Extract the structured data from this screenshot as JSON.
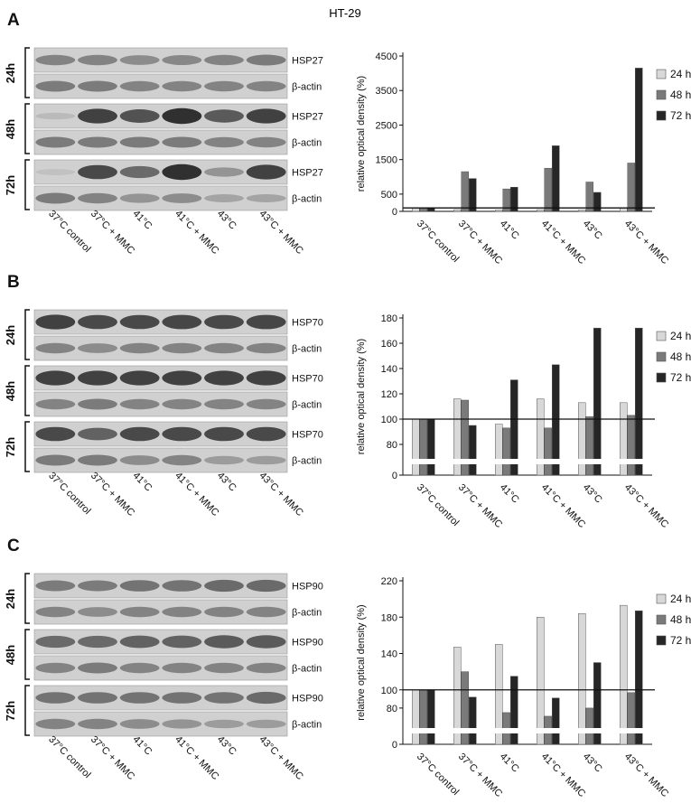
{
  "figure": {
    "title": "HT-29"
  },
  "conditions": [
    "37°C control",
    "37°C + MMC",
    "41°C",
    "41°C + MMC",
    "43°C",
    "43°C + MMC"
  ],
  "panels": [
    {
      "letter": "A",
      "blot_rows": [
        {
          "time": "24h",
          "bands": [
            {
              "label": "HSP27",
              "intensity": [
                0.45,
                0.45,
                0.4,
                0.42,
                0.45,
                0.5
              ]
            },
            {
              "label": "β-actin",
              "intensity": [
                0.5,
                0.5,
                0.45,
                0.45,
                0.45,
                0.45
              ]
            }
          ]
        },
        {
          "time": "48h",
          "bands": [
            {
              "label": "HSP27",
              "intensity": [
                0.12,
                0.85,
                0.75,
                0.95,
                0.7,
                0.85
              ]
            },
            {
              "label": "β-actin",
              "intensity": [
                0.5,
                0.5,
                0.5,
                0.5,
                0.45,
                0.45
              ]
            }
          ]
        },
        {
          "time": "72h",
          "bands": [
            {
              "label": "HSP27",
              "intensity": [
                0.08,
                0.8,
                0.6,
                0.95,
                0.35,
                0.85
              ]
            },
            {
              "label": "β-actin",
              "intensity": [
                0.5,
                0.45,
                0.35,
                0.4,
                0.25,
                0.25
              ]
            }
          ]
        }
      ]
    },
    {
      "letter": "B",
      "blot_rows": [
        {
          "time": "24h",
          "bands": [
            {
              "label": "HSP70",
              "intensity": [
                0.85,
                0.8,
                0.8,
                0.82,
                0.8,
                0.82
              ]
            },
            {
              "label": "β-actin",
              "intensity": [
                0.45,
                0.4,
                0.45,
                0.45,
                0.45,
                0.45
              ]
            }
          ]
        },
        {
          "time": "48h",
          "bands": [
            {
              "label": "HSP70",
              "intensity": [
                0.85,
                0.85,
                0.85,
                0.85,
                0.85,
                0.85
              ]
            },
            {
              "label": "β-actin",
              "intensity": [
                0.45,
                0.5,
                0.45,
                0.45,
                0.45,
                0.45
              ]
            }
          ]
        },
        {
          "time": "72h",
          "bands": [
            {
              "label": "HSP70",
              "intensity": [
                0.8,
                0.65,
                0.8,
                0.8,
                0.8,
                0.8
              ]
            },
            {
              "label": "β-actin",
              "intensity": [
                0.5,
                0.5,
                0.4,
                0.45,
                0.3,
                0.3
              ]
            }
          ]
        }
      ]
    },
    {
      "letter": "C",
      "blot_rows": [
        {
          "time": "24h",
          "bands": [
            {
              "label": "HSP90",
              "intensity": [
                0.5,
                0.5,
                0.55,
                0.55,
                0.6,
                0.6
              ]
            },
            {
              "label": "β-actin",
              "intensity": [
                0.45,
                0.4,
                0.45,
                0.45,
                0.45,
                0.45
              ]
            }
          ]
        },
        {
          "time": "48h",
          "bands": [
            {
              "label": "HSP90",
              "intensity": [
                0.6,
                0.6,
                0.65,
                0.65,
                0.7,
                0.7
              ]
            },
            {
              "label": "β-actin",
              "intensity": [
                0.45,
                0.5,
                0.45,
                0.45,
                0.45,
                0.45
              ]
            }
          ]
        },
        {
          "time": "72h",
          "bands": [
            {
              "label": "HSP90",
              "intensity": [
                0.55,
                0.55,
                0.55,
                0.55,
                0.55,
                0.6
              ]
            },
            {
              "label": "β-actin",
              "intensity": [
                0.45,
                0.45,
                0.4,
                0.35,
                0.3,
                0.3
              ]
            }
          ]
        }
      ]
    }
  ],
  "chart_data": [
    {
      "type": "bar",
      "ylabel": "relative optical density (%)",
      "categories": [
        "37°C control",
        "37°C + MMC",
        "41°C",
        "41°C + MMC",
        "43°C",
        "43°C + MMC"
      ],
      "ticks": [
        0,
        500,
        1500,
        2500,
        3500,
        4500
      ],
      "ylim": [
        0,
        4500
      ],
      "reference_line": 100,
      "legend_position": "top-right",
      "series": [
        {
          "name": "24 h",
          "color": "#d8d8d8",
          "values": [
            100,
            50,
            40,
            50,
            40,
            100
          ]
        },
        {
          "name": "48 h",
          "color": "#7a7a7a",
          "values": [
            100,
            1150,
            650,
            1250,
            850,
            1400
          ]
        },
        {
          "name": "72 h",
          "color": "#262626",
          "values": [
            100,
            950,
            700,
            1900,
            550,
            4150
          ]
        }
      ]
    },
    {
      "type": "bar",
      "ylabel": "relative optical density (%)",
      "categories": [
        "37°C control",
        "37°C + MMC",
        "41°C",
        "41°C + MMC",
        "43°C",
        "43°C + MMC"
      ],
      "ticks": [
        0,
        80,
        100,
        120,
        140,
        160,
        180
      ],
      "ylim": [
        0,
        180
      ],
      "axis_break": [
        0,
        70
      ],
      "reference_line": 100,
      "legend_position": "top-right",
      "series": [
        {
          "name": "24 h",
          "color": "#d8d8d8",
          "values": [
            100,
            116,
            96,
            116,
            113,
            113
          ]
        },
        {
          "name": "48 h",
          "color": "#7a7a7a",
          "values": [
            100,
            115,
            93,
            93,
            102,
            103
          ]
        },
        {
          "name": "72 h",
          "color": "#262626",
          "values": [
            100,
            95,
            131,
            143,
            172,
            172
          ]
        }
      ]
    },
    {
      "type": "bar",
      "ylabel": "relative optical density (%)",
      "categories": [
        "37°C control",
        "37°C + MMC",
        "41°C",
        "41°C + MMC",
        "43°C",
        "43°C + MMC"
      ],
      "ticks": [
        0,
        80,
        100,
        140,
        180,
        220
      ],
      "ylim": [
        0,
        220
      ],
      "axis_break": [
        0,
        60
      ],
      "reference_line": 100,
      "legend_position": "top-right",
      "series": [
        {
          "name": "24 h",
          "color": "#d8d8d8",
          "values": [
            100,
            147,
            150,
            180,
            184,
            193
          ]
        },
        {
          "name": "48 h",
          "color": "#7a7a7a",
          "values": [
            100,
            120,
            75,
            71,
            80,
            97
          ]
        },
        {
          "name": "72 h",
          "color": "#262626",
          "values": [
            100,
            92,
            115,
            91,
            130,
            187
          ]
        }
      ]
    }
  ]
}
